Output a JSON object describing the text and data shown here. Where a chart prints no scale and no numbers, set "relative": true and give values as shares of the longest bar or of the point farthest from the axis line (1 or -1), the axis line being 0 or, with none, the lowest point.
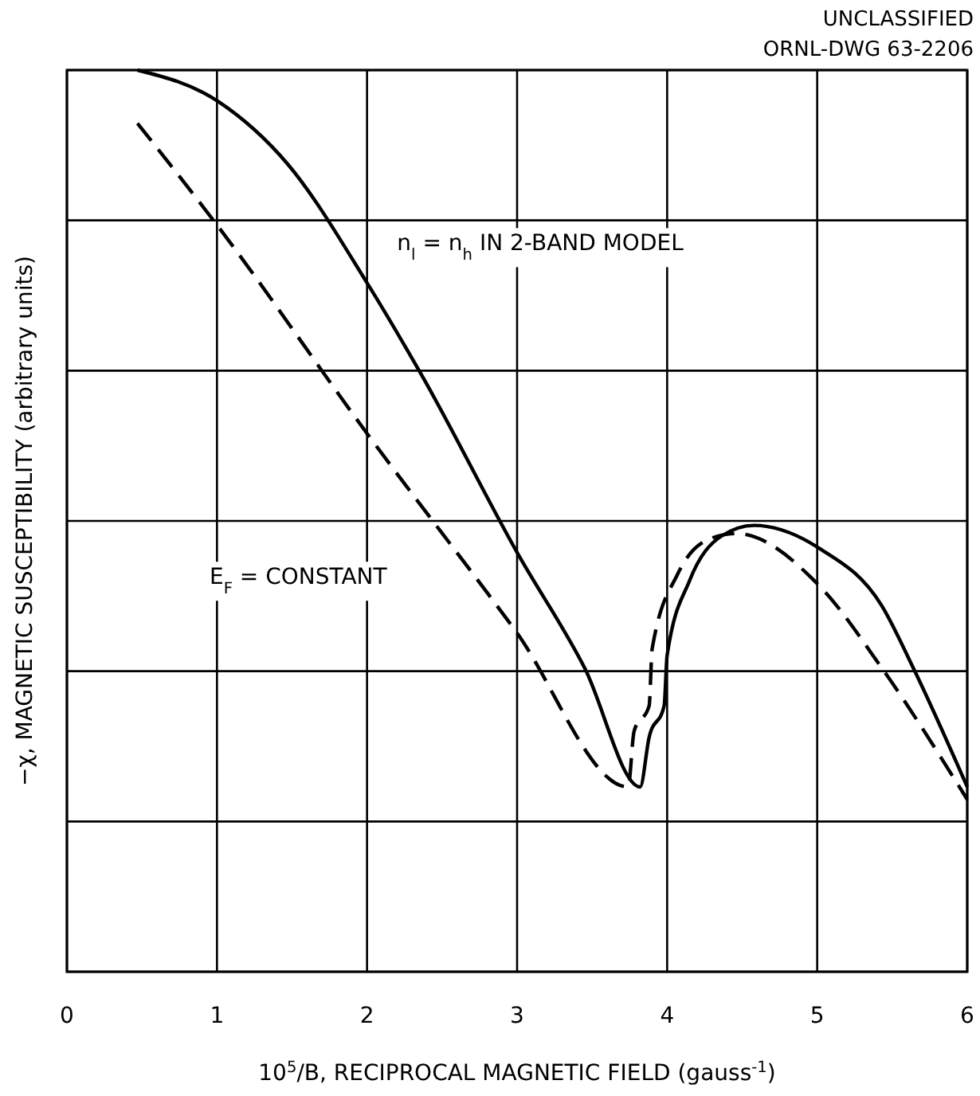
{
  "chart_data": {
    "type": "line",
    "relative": true,
    "xlabel": "10$^{5}$/B, RECIPROCAL MAGNETIC FIELD (gauss$^{-1}$)",
    "ylabel": "−χ, MAGNETIC SUSCEPTIBILITY (arbitrary units)",
    "annotations": [
      "UNCLASSIFIED",
      "ORNL-DWG 63-2206"
    ],
    "xlim": [
      0,
      6
    ],
    "xticks": [
      0,
      1,
      2,
      3,
      4,
      5,
      6
    ],
    "grid": true,
    "marker": "none",
    "series": [
      {
        "name": "n$_{l}$ = n$_{h}$ IN 2-BAND MODEL",
        "color": "#000000",
        "line_style": "solid",
        "x": [
          0.47,
          1.01,
          1.47,
          2.0,
          2.37,
          3.0,
          3.45,
          3.82,
          3.88,
          3.98,
          4.0,
          4.15,
          4.36,
          4.58,
          5.02,
          5.43,
          5.64,
          6.0
        ],
        "values": [
          1,
          0.965,
          0.896,
          0.764,
          0.66,
          0.465,
          0.337,
          0.205,
          0.26,
          0.295,
          0.351,
          0.434,
          0.483,
          0.495,
          0.469,
          0.406,
          0.337,
          0.205
        ]
      },
      {
        "name": "E$_{F}$ = CONSTANT",
        "color": "#000000",
        "line_style": "dashed",
        "x": [
          0.47,
          1.01,
          2.0,
          2.99,
          3.74,
          3.78,
          3.88,
          3.9,
          4.07,
          4.27,
          4.46,
          5.02,
          5.43,
          6.0
        ],
        "values": [
          0.941,
          0.826,
          0.597,
          0.378,
          0.205,
          0.267,
          0.295,
          0.358,
          0.441,
          0.479,
          0.486,
          0.427,
          0.337,
          0.191
        ]
      }
    ]
  }
}
